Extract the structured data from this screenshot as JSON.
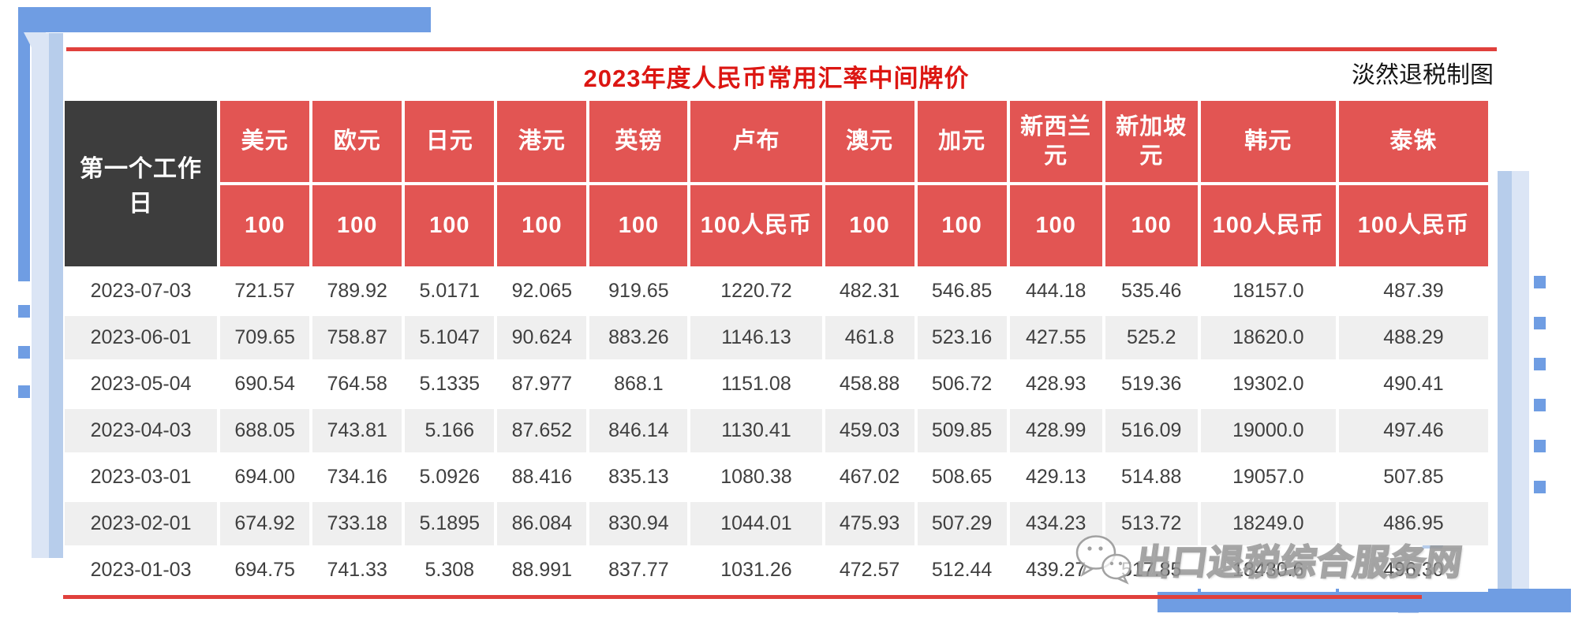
{
  "chart_data": {
    "type": "table",
    "title": "2023年度人民币常用汇率中间牌价",
    "credit": "淡然退税制图",
    "corner_header": "第一个工作日",
    "watermark": {
      "icon": "wechat-icon",
      "text": "出口退税综合服务网"
    },
    "columns": [
      {
        "name": "美元",
        "unit": "100"
      },
      {
        "name": "欧元",
        "unit": "100"
      },
      {
        "name": "日元",
        "unit": "100"
      },
      {
        "name": "港元",
        "unit": "100"
      },
      {
        "name": "英镑",
        "unit": "100"
      },
      {
        "name": "卢布",
        "unit": "100人民币"
      },
      {
        "name": "澳元",
        "unit": "100"
      },
      {
        "name": "加元",
        "unit": "100"
      },
      {
        "name": "新西兰元",
        "unit": "100"
      },
      {
        "name": "新加坡元",
        "unit": "100"
      },
      {
        "name": "韩元",
        "unit": "100人民币"
      },
      {
        "name": "泰铢",
        "unit": "100人民币"
      }
    ],
    "rows": [
      {
        "date": "2023-07-03",
        "values": [
          "721.57",
          "789.92",
          "5.0171",
          "92.065",
          "919.65",
          "1220.72",
          "482.31",
          "546.85",
          "444.18",
          "535.46",
          "18157.0",
          "487.39"
        ]
      },
      {
        "date": "2023-06-01",
        "values": [
          "709.65",
          "758.87",
          "5.1047",
          "90.624",
          "883.26",
          "1146.13",
          "461.8",
          "523.16",
          "427.55",
          "525.2",
          "18620.0",
          "488.29"
        ]
      },
      {
        "date": "2023-05-04",
        "values": [
          "690.54",
          "764.58",
          "5.1335",
          "87.977",
          "868.1",
          "1151.08",
          "458.88",
          "506.72",
          "428.93",
          "519.36",
          "19302.0",
          "490.41"
        ]
      },
      {
        "date": "2023-04-03",
        "values": [
          "688.05",
          "743.81",
          "5.166",
          "87.652",
          "846.14",
          "1130.41",
          "459.03",
          "509.85",
          "428.99",
          "516.09",
          "19000.0",
          "497.46"
        ]
      },
      {
        "date": "2023-03-01",
        "values": [
          "694.00",
          "734.16",
          "5.0926",
          "88.416",
          "835.13",
          "1080.38",
          "467.02",
          "508.65",
          "429.13",
          "514.88",
          "19057.0",
          "507.85"
        ]
      },
      {
        "date": "2023-02-01",
        "values": [
          "674.92",
          "733.18",
          "5.1895",
          "86.084",
          "830.94",
          "1044.01",
          "475.93",
          "507.29",
          "434.23",
          "513.72",
          "18249.0",
          "486.95"
        ]
      },
      {
        "date": "2023-01-03",
        "values": [
          "694.75",
          "741.33",
          "5.308",
          "88.991",
          "837.77",
          "1031.26",
          "472.57",
          "512.44",
          "439.27",
          "517.85",
          "18430.6",
          "496.30"
        ]
      }
    ],
    "colors": {
      "header_red": "#e25553",
      "title_red": "#dc1612",
      "rule_red": "#e0403c",
      "corner_dark": "#3d3d3d",
      "row_alt_gray": "#efefef",
      "frame_blue_dark": "#6f9de3",
      "frame_blue_mid": "#b7cdeb",
      "frame_blue_light": "#dbe5f5"
    }
  }
}
